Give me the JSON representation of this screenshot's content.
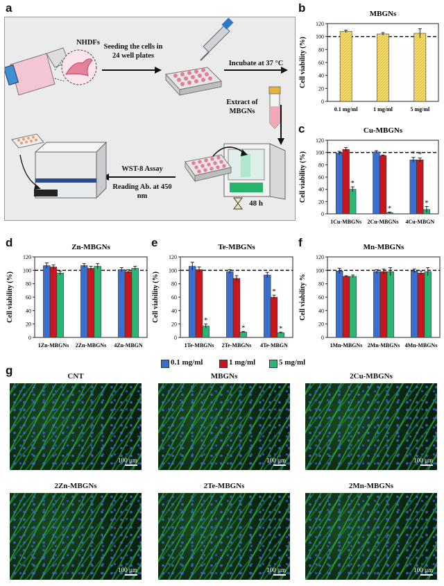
{
  "panel_letters": {
    "a": "a",
    "b": "b",
    "c": "c",
    "d": "d",
    "e": "e",
    "f": "f",
    "g": "g"
  },
  "schematic": {
    "cells": "NHDFs",
    "seeding": "Seeding the cells in 24 well plates",
    "incubate": "Incubate at 37 °C",
    "extract": "Extract of MBGNs",
    "assay": "WST-8 Assay",
    "reading": "Reading Ab. at 450 nm",
    "time": "48 h"
  },
  "colors": {
    "blue": "#3a6fd0",
    "red": "#c8161d",
    "green": "#2bb673",
    "yellow": "#f6dc6a"
  },
  "legend": [
    {
      "label": "0.1 mg/ml",
      "color": "#3a6fd0"
    },
    {
      "label": "1 mg/ml",
      "color": "#c8161d"
    },
    {
      "label": "5 mg/ml",
      "color": "#2bb673"
    }
  ],
  "chart_data": [
    {
      "id": "b",
      "type": "bar",
      "title": "MBGNs",
      "ylabel": "Cell viability (%)",
      "ylim": [
        0,
        120
      ],
      "yticks": [
        0,
        20,
        40,
        60,
        80,
        100,
        120
      ],
      "reference_line": 100,
      "categories": [
        "0.1 mg/ml",
        "1 mg/ml",
        "5 mg/ml"
      ],
      "series": [
        {
          "values": [
            108,
            104,
            105
          ],
          "errors": [
            2,
            2,
            7
          ],
          "color": "#f6dc6a",
          "significant": [
            false,
            false,
            false
          ]
        }
      ]
    },
    {
      "id": "c",
      "type": "bar",
      "title": "Cu-MBGNs",
      "ylabel": "Cell viability (%)",
      "ylim": [
        0,
        120
      ],
      "yticks": [
        0,
        20,
        40,
        60,
        80,
        100,
        120
      ],
      "reference_line": 100,
      "categories": [
        "1Cu-MBGNs",
        "2Cu-MBGNs",
        "4Cu-MBGN"
      ],
      "series": [
        {
          "name": "0.1 mg/ml",
          "values": [
            99,
            101,
            88
          ],
          "errors": [
            3,
            2,
            4
          ],
          "color": "#3a6fd0",
          "significant": [
            false,
            false,
            true
          ]
        },
        {
          "name": "1 mg/ml",
          "values": [
            105,
            95,
            88
          ],
          "errors": [
            3,
            1,
            3
          ],
          "color": "#c8161d",
          "significant": [
            false,
            false,
            true
          ]
        },
        {
          "name": "5 mg/ml",
          "values": [
            40,
            2,
            7
          ],
          "errors": [
            4,
            1,
            5
          ],
          "color": "#2bb673",
          "significant": [
            true,
            true,
            true
          ]
        }
      ]
    },
    {
      "id": "d",
      "type": "bar",
      "title": "Zn-MBGNs",
      "ylabel": "Cell viability (%)",
      "ylim": [
        0,
        120
      ],
      "yticks": [
        0,
        20,
        40,
        60,
        80,
        100,
        120
      ],
      "reference_line": 100,
      "categories": [
        "1Zn-MBGNs",
        "2Zn-MBGNs",
        "4Zn-MBGN"
      ],
      "series": [
        {
          "name": "0.1 mg/ml",
          "values": [
            107,
            107,
            101
          ],
          "errors": [
            4,
            3,
            3
          ],
          "color": "#3a6fd0",
          "significant": [
            false,
            false,
            false
          ]
        },
        {
          "name": "1 mg/ml",
          "values": [
            105,
            103,
            98
          ],
          "errors": [
            3,
            3,
            3
          ],
          "color": "#c8161d",
          "significant": [
            false,
            false,
            false
          ]
        },
        {
          "name": "5 mg/ml",
          "values": [
            96,
            106,
            103
          ],
          "errors": [
            3,
            4,
            3
          ],
          "color": "#2bb673",
          "significant": [
            false,
            false,
            false
          ]
        }
      ]
    },
    {
      "id": "e",
      "type": "bar",
      "title": "Te-MBGNs",
      "ylabel": "Cell viability (%)",
      "ylim": [
        0,
        120
      ],
      "yticks": [
        0,
        20,
        40,
        60,
        80,
        100,
        120
      ],
      "reference_line": 100,
      "categories": [
        "1Te-MBGNs",
        "2Te-MBGNs",
        "4Te-MBGN"
      ],
      "series": [
        {
          "name": "0.1 mg/ml",
          "values": [
            106,
            98,
            93
          ],
          "errors": [
            6,
            3,
            4
          ],
          "color": "#3a6fd0",
          "significant": [
            false,
            false,
            false
          ]
        },
        {
          "name": "1 mg/ml",
          "values": [
            101,
            88,
            60
          ],
          "errors": [
            4,
            4,
            3
          ],
          "color": "#c8161d",
          "significant": [
            false,
            false,
            true
          ]
        },
        {
          "name": "5 mg/ml",
          "values": [
            17,
            8,
            7
          ],
          "errors": [
            3,
            1,
            1
          ],
          "color": "#2bb673",
          "significant": [
            true,
            true,
            true
          ]
        }
      ]
    },
    {
      "id": "f",
      "type": "bar",
      "title": "Mn-MBGNs",
      "ylabel": "Cell viability %",
      "ylim": [
        0,
        120
      ],
      "yticks": [
        0,
        20,
        40,
        60,
        80,
        100,
        120
      ],
      "reference_line": 100,
      "categories": [
        "1Mn-MBGNs",
        "2Mn-MBGNs",
        "4Mn-MBGNs"
      ],
      "series": [
        {
          "name": "0.1 mg/ml",
          "values": [
            99,
            98,
            99
          ],
          "errors": [
            4,
            3,
            3
          ],
          "color": "#3a6fd0",
          "significant": [
            false,
            false,
            false
          ]
        },
        {
          "name": "1 mg/ml",
          "values": [
            91,
            98,
            96
          ],
          "errors": [
            1,
            4,
            3
          ],
          "color": "#c8161d",
          "significant": [
            false,
            false,
            false
          ]
        },
        {
          "name": "5 mg/ml",
          "values": [
            91,
            98,
            98
          ],
          "errors": [
            2,
            6,
            6
          ],
          "color": "#2bb673",
          "significant": [
            false,
            false,
            false
          ]
        }
      ]
    }
  ],
  "micrographs": [
    {
      "title": "CNT",
      "scale": "100 µm"
    },
    {
      "title": "MBGNs",
      "scale": "100 µm"
    },
    {
      "title": "2Cu-MBGNs",
      "scale": "100 µm"
    },
    {
      "title": "2Zn-MBGNs",
      "scale": "100 µm"
    },
    {
      "title": "2Te-MBGNs",
      "scale": "100 µm"
    },
    {
      "title": "2Mn-MBGNs",
      "scale": "100 µm"
    }
  ]
}
